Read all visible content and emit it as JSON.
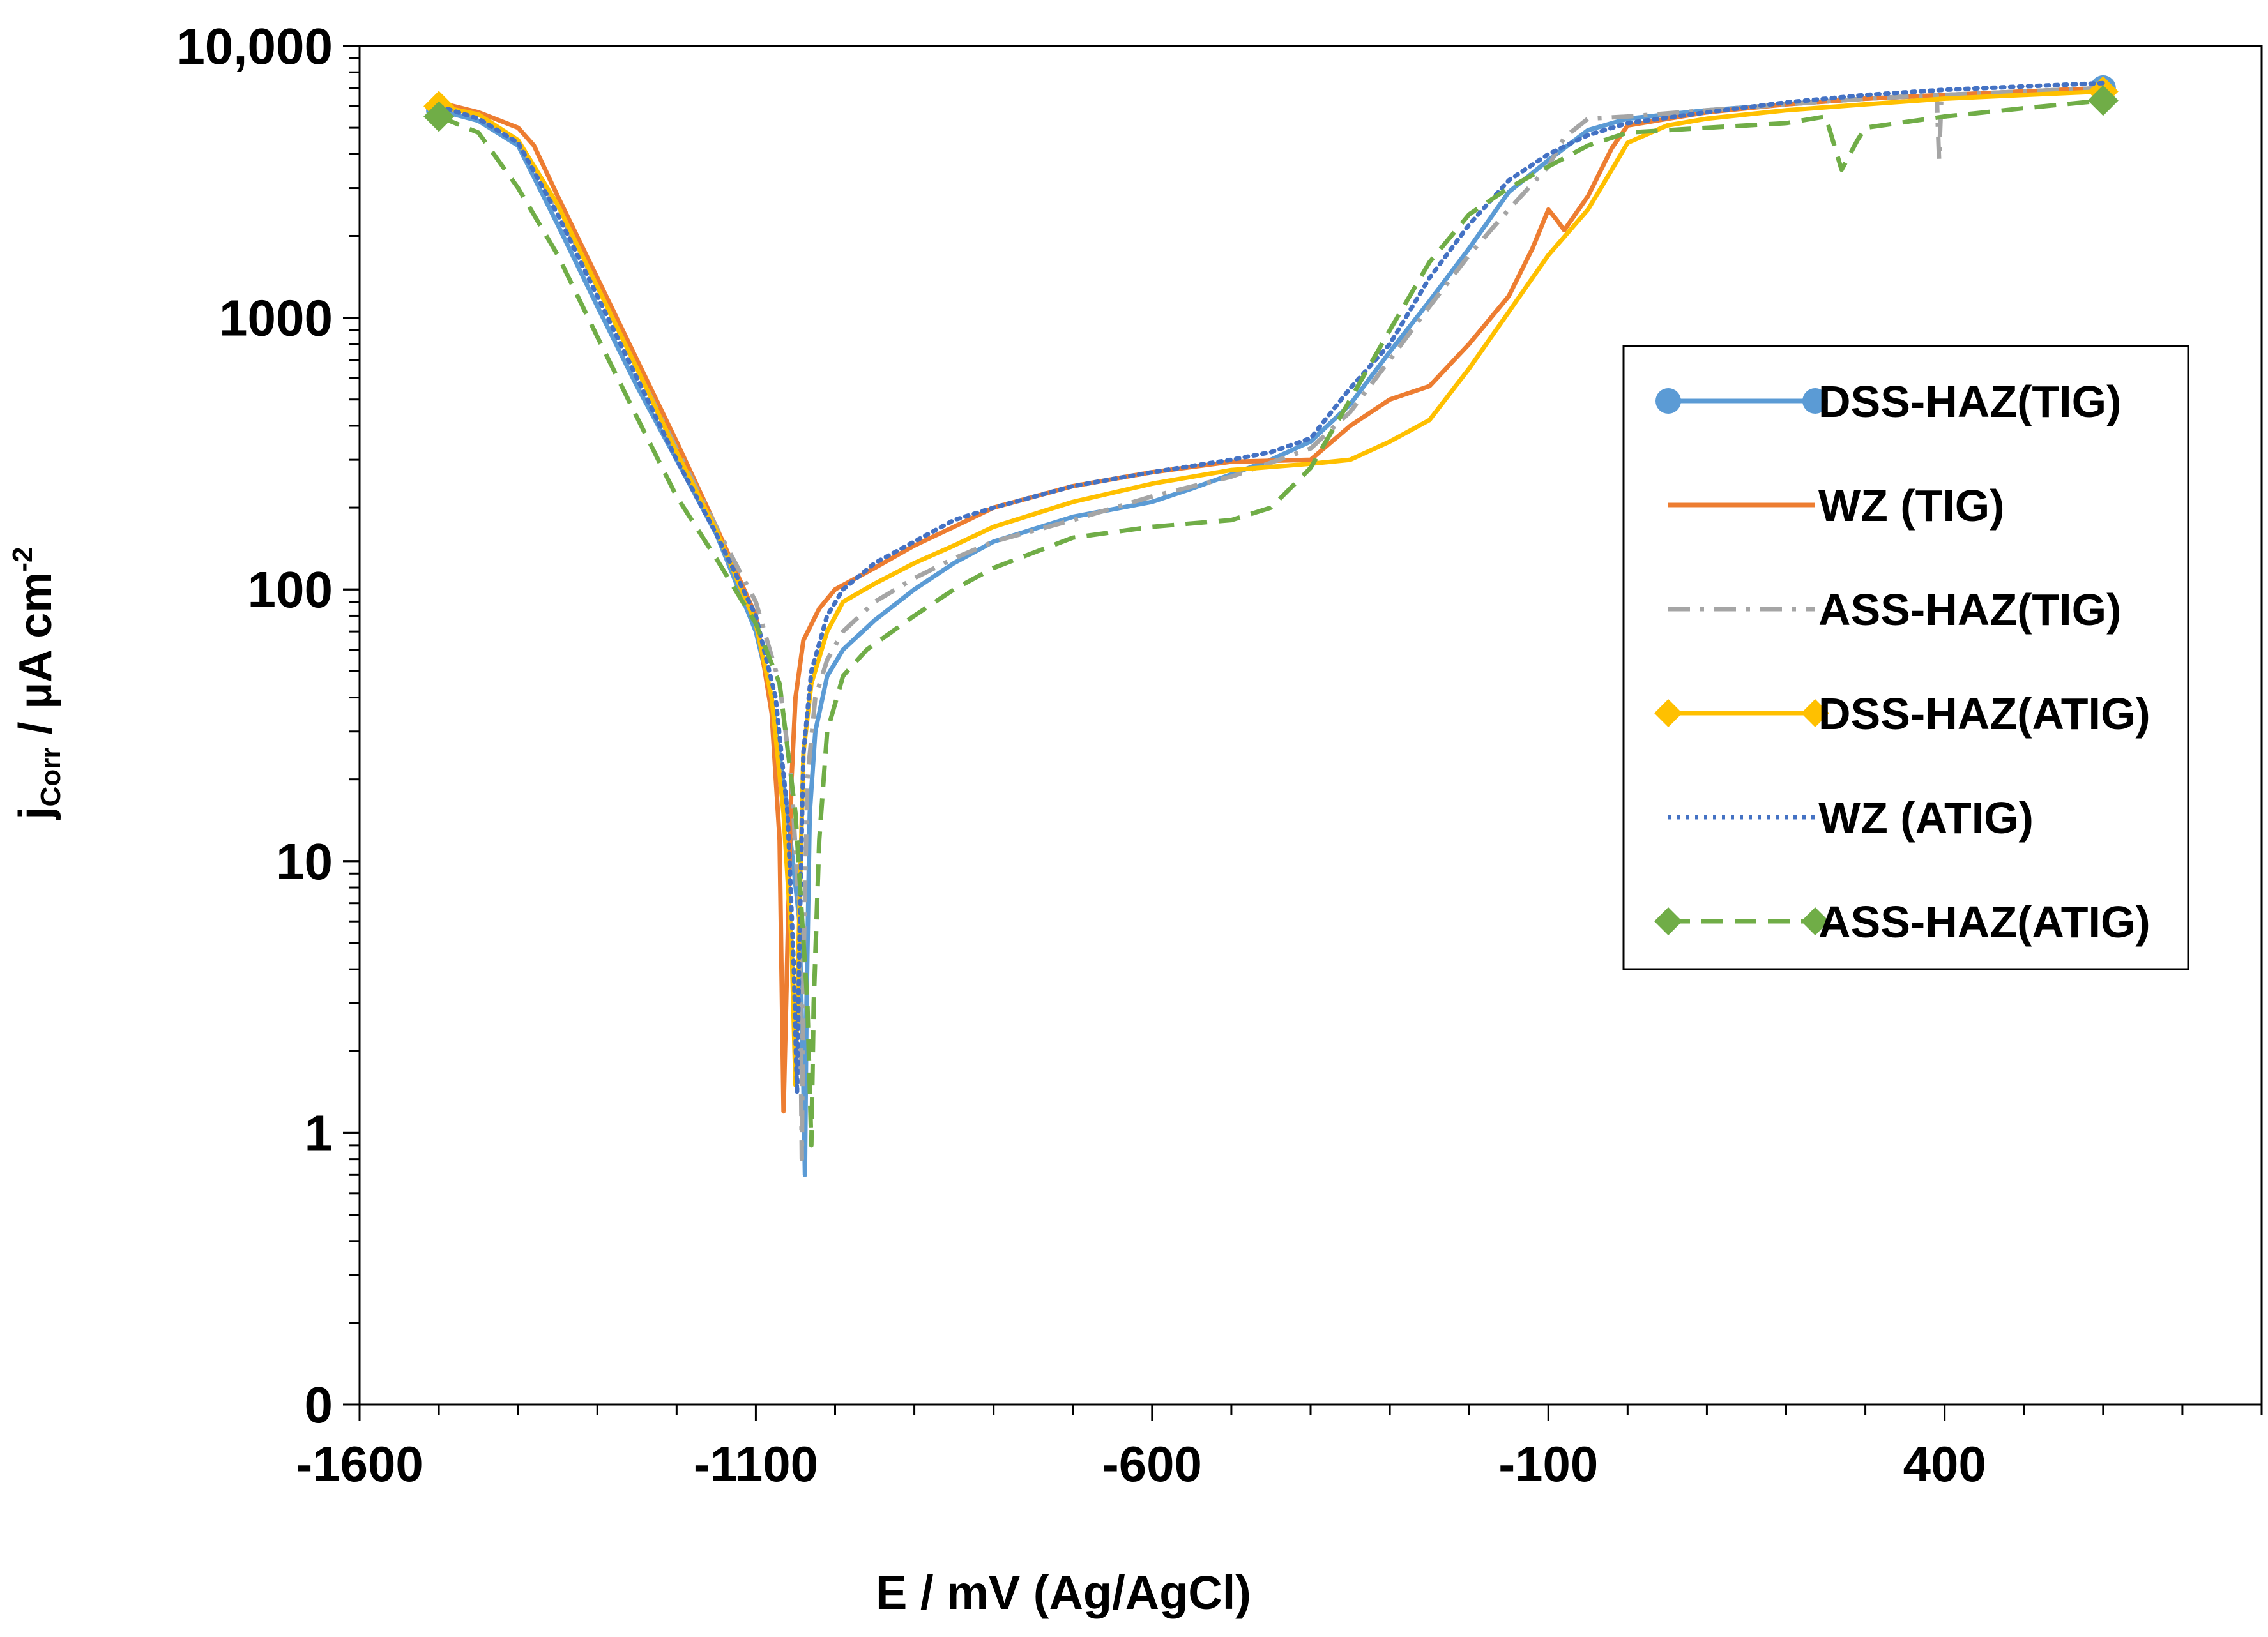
{
  "chart_data": {
    "type": "line",
    "title": "",
    "xlabel": "E / mV (Ag/AgCl)",
    "ylabel": {
      "main": "j",
      "sub": "Corr",
      "rest": " / µA cm",
      "sup": "-2"
    },
    "xlim": [
      -1600,
      800
    ],
    "x_ticks": [
      -1600,
      -1100,
      -600,
      -100,
      400
    ],
    "y_ticks": [
      {
        "label": "0",
        "value": 0.1
      },
      {
        "label": "1",
        "value": 1
      },
      {
        "label": "10",
        "value": 10
      },
      {
        "label": "100",
        "value": 100
      },
      {
        "label": "1000",
        "value": 1000
      },
      {
        "label": "10,000",
        "value": 10000
      }
    ],
    "ylim_log": [
      0.1,
      10000
    ],
    "grid": false,
    "legend_position": "right",
    "series": [
      {
        "name": "DSS-HAZ(TIG)",
        "color": "#5B9BD5",
        "dash": "solid",
        "marker": "circle",
        "points": [
          [
            -1500,
            5800
          ],
          [
            -1450,
            5300
          ],
          [
            -1400,
            4300
          ],
          [
            -1350,
            2200
          ],
          [
            -1300,
            1100
          ],
          [
            -1250,
            560
          ],
          [
            -1200,
            300
          ],
          [
            -1150,
            160
          ],
          [
            -1100,
            70
          ],
          [
            -1080,
            40
          ],
          [
            -1060,
            15
          ],
          [
            -1045,
            6
          ],
          [
            -1040,
            1.5
          ],
          [
            -1038,
            0.7
          ],
          [
            -1036,
            3
          ],
          [
            -1032,
            15
          ],
          [
            -1025,
            30
          ],
          [
            -1010,
            48
          ],
          [
            -990,
            60
          ],
          [
            -950,
            77
          ],
          [
            -900,
            100
          ],
          [
            -850,
            125
          ],
          [
            -800,
            150
          ],
          [
            -700,
            185
          ],
          [
            -600,
            210
          ],
          [
            -550,
            235
          ],
          [
            -500,
            265
          ],
          [
            -450,
            300
          ],
          [
            -400,
            350
          ],
          [
            -350,
            480
          ],
          [
            -300,
            750
          ],
          [
            -250,
            1150
          ],
          [
            -200,
            1800
          ],
          [
            -150,
            2900
          ],
          [
            -100,
            3800
          ],
          [
            -50,
            4900
          ],
          [
            0,
            5400
          ],
          [
            100,
            5800
          ],
          [
            200,
            6100
          ],
          [
            300,
            6400
          ],
          [
            400,
            6600
          ],
          [
            500,
            6800
          ],
          [
            600,
            7000
          ]
        ]
      },
      {
        "name": "WZ (TIG)",
        "color": "#ED7D31",
        "dash": "solid",
        "marker": "none",
        "points": [
          [
            -1500,
            6200
          ],
          [
            -1450,
            5700
          ],
          [
            -1400,
            5000
          ],
          [
            -1380,
            4300
          ],
          [
            -1350,
            2800
          ],
          [
            -1300,
            1400
          ],
          [
            -1250,
            700
          ],
          [
            -1200,
            350
          ],
          [
            -1150,
            170
          ],
          [
            -1100,
            80
          ],
          [
            -1080,
            35
          ],
          [
            -1070,
            12
          ],
          [
            -1065,
            1.2
          ],
          [
            -1060,
            5
          ],
          [
            -1055,
            20
          ],
          [
            -1050,
            40
          ],
          [
            -1040,
            65
          ],
          [
            -1020,
            85
          ],
          [
            -1000,
            100
          ],
          [
            -950,
            120
          ],
          [
            -900,
            145
          ],
          [
            -850,
            170
          ],
          [
            -800,
            200
          ],
          [
            -700,
            240
          ],
          [
            -600,
            270
          ],
          [
            -500,
            295
          ],
          [
            -400,
            300
          ],
          [
            -350,
            400
          ],
          [
            -300,
            500
          ],
          [
            -250,
            560
          ],
          [
            -200,
            800
          ],
          [
            -150,
            1200
          ],
          [
            -120,
            1800
          ],
          [
            -100,
            2500
          ],
          [
            -90,
            2300
          ],
          [
            -80,
            2100
          ],
          [
            -50,
            2800
          ],
          [
            -20,
            4200
          ],
          [
            0,
            5100
          ],
          [
            100,
            5700
          ],
          [
            200,
            6100
          ],
          [
            300,
            6400
          ],
          [
            400,
            6600
          ],
          [
            500,
            6800
          ],
          [
            600,
            7000
          ]
        ]
      },
      {
        "name": "ASS-HAZ(TIG)",
        "color": "#A5A5A5",
        "dash": "dashdot",
        "marker": "none",
        "points": [
          [
            -1500,
            6000
          ],
          [
            -1450,
            5500
          ],
          [
            -1400,
            4500
          ],
          [
            -1350,
            2500
          ],
          [
            -1300,
            1300
          ],
          [
            -1250,
            650
          ],
          [
            -1200,
            330
          ],
          [
            -1150,
            170
          ],
          [
            -1100,
            90
          ],
          [
            -1070,
            45
          ],
          [
            -1055,
            20
          ],
          [
            -1045,
            6
          ],
          [
            -1042,
            0.8
          ],
          [
            -1040,
            4
          ],
          [
            -1035,
            20
          ],
          [
            -1025,
            40
          ],
          [
            -1010,
            55
          ],
          [
            -990,
            70
          ],
          [
            -950,
            90
          ],
          [
            -900,
            110
          ],
          [
            -850,
            130
          ],
          [
            -800,
            150
          ],
          [
            -700,
            180
          ],
          [
            -600,
            220
          ],
          [
            -500,
            260
          ],
          [
            -400,
            330
          ],
          [
            -350,
            450
          ],
          [
            -300,
            700
          ],
          [
            -250,
            1100
          ],
          [
            -200,
            1700
          ],
          [
            -150,
            2500
          ],
          [
            -100,
            3600
          ],
          [
            -80,
            4600
          ],
          [
            -50,
            5400
          ],
          [
            0,
            5500
          ],
          [
            100,
            5800
          ],
          [
            200,
            6100
          ],
          [
            300,
            6400
          ],
          [
            390,
            6600
          ],
          [
            393,
            3800
          ],
          [
            396,
            6600
          ],
          [
            500,
            6800
          ],
          [
            600,
            7000
          ]
        ]
      },
      {
        "name": "DSS-HAZ(ATIG)",
        "color": "#FFC000",
        "dash": "solid",
        "marker": "diamond",
        "points": [
          [
            -1500,
            6000
          ],
          [
            -1450,
            5600
          ],
          [
            -1400,
            4500
          ],
          [
            -1350,
            2600
          ],
          [
            -1300,
            1300
          ],
          [
            -1250,
            650
          ],
          [
            -1200,
            320
          ],
          [
            -1150,
            165
          ],
          [
            -1100,
            75
          ],
          [
            -1080,
            40
          ],
          [
            -1065,
            15
          ],
          [
            -1055,
            5
          ],
          [
            -1050,
            1.5
          ],
          [
            -1046,
            5
          ],
          [
            -1040,
            25
          ],
          [
            -1030,
            45
          ],
          [
            -1010,
            70
          ],
          [
            -990,
            90
          ],
          [
            -950,
            105
          ],
          [
            -900,
            125
          ],
          [
            -850,
            145
          ],
          [
            -800,
            170
          ],
          [
            -700,
            210
          ],
          [
            -600,
            245
          ],
          [
            -500,
            275
          ],
          [
            -400,
            290
          ],
          [
            -350,
            300
          ],
          [
            -300,
            350
          ],
          [
            -250,
            420
          ],
          [
            -200,
            650
          ],
          [
            -150,
            1050
          ],
          [
            -100,
            1700
          ],
          [
            -50,
            2500
          ],
          [
            -20,
            3500
          ],
          [
            0,
            4400
          ],
          [
            50,
            5100
          ],
          [
            100,
            5400
          ],
          [
            200,
            5800
          ],
          [
            300,
            6100
          ],
          [
            400,
            6400
          ],
          [
            500,
            6600
          ],
          [
            600,
            6800
          ]
        ]
      },
      {
        "name": "WZ (ATIG)",
        "color": "#4472C4",
        "dash": "dotted",
        "marker": "none",
        "points": [
          [
            -1500,
            6000
          ],
          [
            -1450,
            5400
          ],
          [
            -1400,
            4400
          ],
          [
            -1350,
            2400
          ],
          [
            -1300,
            1200
          ],
          [
            -1250,
            600
          ],
          [
            -1200,
            300
          ],
          [
            -1150,
            160
          ],
          [
            -1100,
            80
          ],
          [
            -1075,
            40
          ],
          [
            -1060,
            15
          ],
          [
            -1052,
            4
          ],
          [
            -1048,
            1.4
          ],
          [
            -1045,
            5
          ],
          [
            -1040,
            25
          ],
          [
            -1030,
            50
          ],
          [
            -1010,
            80
          ],
          [
            -990,
            100
          ],
          [
            -950,
            125
          ],
          [
            -900,
            150
          ],
          [
            -850,
            180
          ],
          [
            -800,
            200
          ],
          [
            -700,
            240
          ],
          [
            -600,
            270
          ],
          [
            -500,
            300
          ],
          [
            -450,
            320
          ],
          [
            -400,
            360
          ],
          [
            -350,
            550
          ],
          [
            -300,
            800
          ],
          [
            -250,
            1400
          ],
          [
            -200,
            2200
          ],
          [
            -150,
            3200
          ],
          [
            -100,
            4000
          ],
          [
            -50,
            4700
          ],
          [
            0,
            5200
          ],
          [
            100,
            5700
          ],
          [
            200,
            6200
          ],
          [
            300,
            6600
          ],
          [
            400,
            6900
          ],
          [
            500,
            7100
          ],
          [
            600,
            7300
          ]
        ]
      },
      {
        "name": "ASS-HAZ(ATIG)",
        "color": "#70AD47",
        "dash": "dashed",
        "marker": "diamond",
        "points": [
          [
            -1500,
            5500
          ],
          [
            -1450,
            4800
          ],
          [
            -1400,
            3000
          ],
          [
            -1350,
            1700
          ],
          [
            -1300,
            850
          ],
          [
            -1250,
            430
          ],
          [
            -1200,
            220
          ],
          [
            -1150,
            130
          ],
          [
            -1100,
            75
          ],
          [
            -1070,
            45
          ],
          [
            -1050,
            15
          ],
          [
            -1035,
            3
          ],
          [
            -1030,
            0.9
          ],
          [
            -1027,
            3
          ],
          [
            -1020,
            12
          ],
          [
            -1010,
            30
          ],
          [
            -990,
            48
          ],
          [
            -960,
            60
          ],
          [
            -900,
            80
          ],
          [
            -850,
            100
          ],
          [
            -800,
            120
          ],
          [
            -700,
            155
          ],
          [
            -600,
            170
          ],
          [
            -500,
            180
          ],
          [
            -450,
            200
          ],
          [
            -400,
            280
          ],
          [
            -350,
            500
          ],
          [
            -300,
            900
          ],
          [
            -250,
            1600
          ],
          [
            -200,
            2400
          ],
          [
            -150,
            3000
          ],
          [
            -100,
            3600
          ],
          [
            -50,
            4300
          ],
          [
            0,
            4800
          ],
          [
            100,
            5000
          ],
          [
            200,
            5200
          ],
          [
            250,
            5500
          ],
          [
            270,
            3500
          ],
          [
            290,
            4500
          ],
          [
            300,
            5000
          ],
          [
            400,
            5500
          ],
          [
            500,
            5900
          ],
          [
            600,
            6300
          ]
        ]
      }
    ]
  }
}
